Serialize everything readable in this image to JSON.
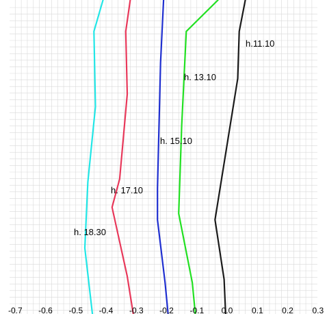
{
  "chart_data": {
    "type": "line",
    "title": "",
    "xlabel": "",
    "ylabel": "",
    "xlim": [
      -0.72,
      0.32
    ],
    "ylim": [
      0,
      10
    ],
    "grid": true,
    "x_ticks": [
      "-0.7",
      "-0.6",
      "-0.5",
      "-0.4",
      "-0.3",
      "-0.2",
      "-0.1",
      "0.0",
      "0.1",
      "0.2",
      "0.3"
    ],
    "series": [
      {
        "name": "h.11.10",
        "color": "#1a1a1a",
        "points": [
          [
            0.06,
            10.0
          ],
          [
            0.04,
            9.0
          ],
          [
            0.035,
            7.5
          ],
          [
            -0.04,
            3.0
          ],
          [
            -0.01,
            1.1
          ],
          [
            -0.005,
            0.0
          ]
        ]
      },
      {
        "name": "h. 13.10",
        "color": "#22e022",
        "points": [
          [
            -0.03,
            10.0
          ],
          [
            -0.135,
            9.0
          ],
          [
            -0.15,
            6.0
          ],
          [
            -0.16,
            3.2
          ],
          [
            -0.115,
            1.0
          ],
          [
            -0.105,
            0.0
          ]
        ]
      },
      {
        "name": "h. 15.10",
        "color": "#1f2fd0",
        "points": [
          [
            -0.21,
            10.0
          ],
          [
            -0.22,
            8.0
          ],
          [
            -0.23,
            4.0
          ],
          [
            -0.23,
            3.0
          ],
          [
            -0.205,
            1.0
          ],
          [
            -0.195,
            0.0
          ]
        ]
      },
      {
        "name": "h. 17.10",
        "color": "#e8385a",
        "points": [
          [
            -0.32,
            10.0
          ],
          [
            -0.335,
            9.0
          ],
          [
            -0.33,
            7.0
          ],
          [
            -0.355,
            4.3
          ],
          [
            -0.38,
            3.4
          ],
          [
            -0.33,
            1.2
          ],
          [
            -0.31,
            0.0
          ]
        ]
      },
      {
        "name": "h. 18.30",
        "color": "#22e6e6",
        "points": [
          [
            -0.41,
            10.0
          ],
          [
            -0.44,
            9.0
          ],
          [
            -0.435,
            6.6
          ],
          [
            -0.46,
            4.2
          ],
          [
            -0.47,
            2.1
          ],
          [
            -0.445,
            0.0
          ]
        ]
      }
    ]
  }
}
